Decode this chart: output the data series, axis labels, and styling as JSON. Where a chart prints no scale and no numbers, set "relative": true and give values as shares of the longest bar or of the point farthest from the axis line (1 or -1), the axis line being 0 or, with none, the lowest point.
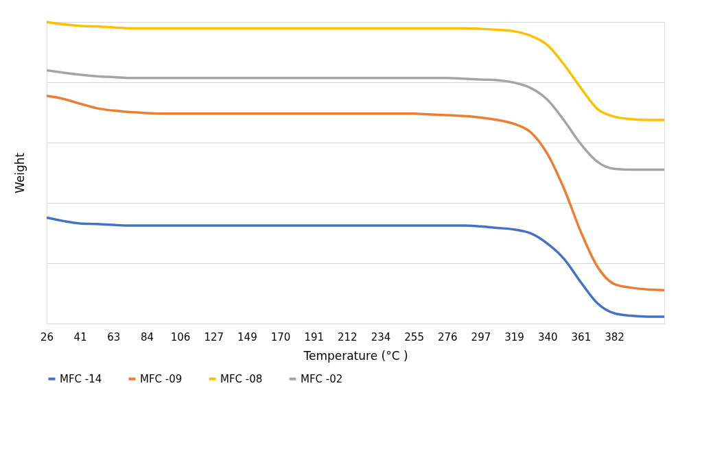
{
  "chart_data": {
    "type": "line",
    "xlabel": "Temperature (°C )",
    "ylabel": "Weight",
    "relative": true,
    "grid": "y",
    "legend": "bottom",
    "marker": "none",
    "line_style": "solid",
    "categories": [
      "26",
      null,
      "41",
      null,
      "63",
      null,
      "84",
      null,
      "106",
      null,
      "127",
      null,
      "149",
      null,
      "170",
      null,
      "191",
      null,
      "212",
      null,
      "234",
      null,
      "255",
      null,
      "276",
      null,
      "297",
      null,
      "319",
      null,
      "340",
      null,
      "361",
      null,
      "382",
      null,
      null,
      null
    ],
    "series": [
      {
        "name": "MFC -14",
        "color": "#4472c4",
        "values": [
          0.351,
          0.34,
          0.332,
          0.33,
          0.327,
          0.325,
          0.325,
          0.325,
          0.325,
          0.325,
          0.325,
          0.325,
          0.325,
          0.325,
          0.325,
          0.325,
          0.325,
          0.325,
          0.325,
          0.325,
          0.325,
          0.325,
          0.325,
          0.325,
          0.325,
          0.325,
          0.322,
          0.317,
          0.312,
          0.299,
          0.265,
          0.214,
          0.137,
          0.067,
          0.034,
          0.026,
          0.023,
          0.023
        ]
      },
      {
        "name": "MFC -09",
        "color": "#ed7d31",
        "values": [
          0.755,
          0.745,
          0.729,
          0.714,
          0.706,
          0.701,
          0.698,
          0.696,
          0.696,
          0.696,
          0.696,
          0.696,
          0.696,
          0.696,
          0.696,
          0.696,
          0.696,
          0.696,
          0.696,
          0.696,
          0.696,
          0.696,
          0.696,
          0.693,
          0.691,
          0.688,
          0.683,
          0.675,
          0.662,
          0.634,
          0.562,
          0.446,
          0.304,
          0.188,
          0.131,
          0.119,
          0.113,
          0.111
        ]
      },
      {
        "name": "MFC -08",
        "color": "#ffc000",
        "values": [
          1.0,
          0.992,
          0.987,
          0.985,
          0.982,
          0.979,
          0.979,
          0.979,
          0.979,
          0.979,
          0.979,
          0.979,
          0.979,
          0.979,
          0.979,
          0.979,
          0.979,
          0.979,
          0.979,
          0.979,
          0.979,
          0.979,
          0.979,
          0.979,
          0.979,
          0.979,
          0.977,
          0.974,
          0.969,
          0.954,
          0.923,
          0.858,
          0.781,
          0.711,
          0.686,
          0.678,
          0.675,
          0.675
        ]
      },
      {
        "name": "MFC -02",
        "color": "#a5a5a5",
        "values": [
          0.84,
          0.832,
          0.825,
          0.82,
          0.817,
          0.814,
          0.814,
          0.814,
          0.814,
          0.814,
          0.814,
          0.814,
          0.814,
          0.814,
          0.814,
          0.814,
          0.814,
          0.814,
          0.814,
          0.814,
          0.814,
          0.814,
          0.814,
          0.814,
          0.814,
          0.812,
          0.809,
          0.807,
          0.799,
          0.781,
          0.742,
          0.673,
          0.595,
          0.536,
          0.513,
          0.51,
          0.51,
          0.51
        ]
      }
    ]
  }
}
